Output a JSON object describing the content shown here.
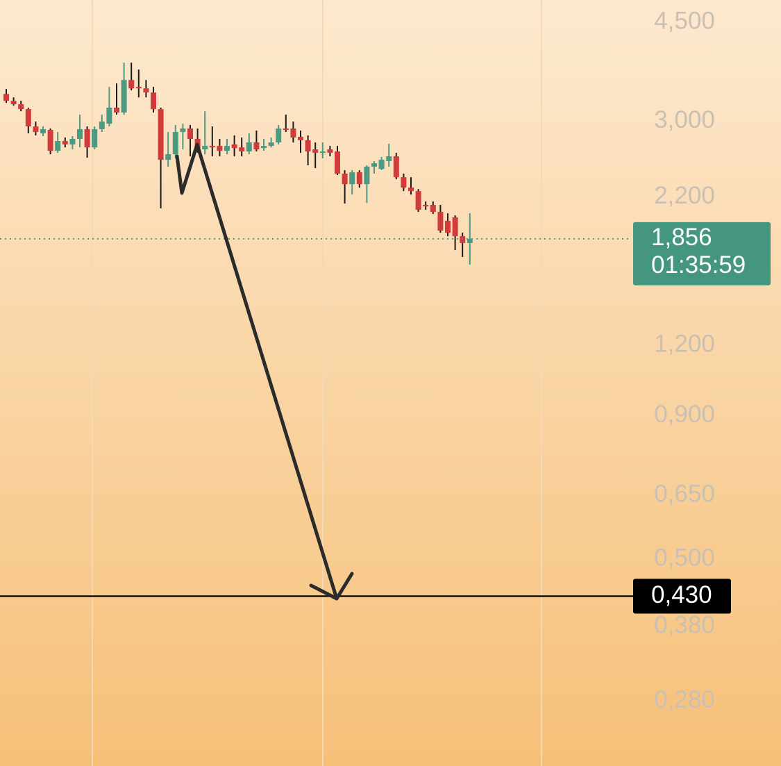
{
  "chart_data": {
    "type": "candlestick",
    "log_scale": true,
    "ylim": [
      0.2147,
      4.93
    ],
    "yticks": [
      {
        "value": 4.5,
        "label": "4,500"
      },
      {
        "value": 3.0,
        "label": "3,000"
      },
      {
        "value": 2.2,
        "label": "2,200"
      },
      {
        "value": 1.2,
        "label": "1,200"
      },
      {
        "value": 0.9,
        "label": "0,900"
      },
      {
        "value": 0.65,
        "label": "0,650"
      },
      {
        "value": 0.5,
        "label": "0,500"
      },
      {
        "value": 0.38,
        "label": "0,380"
      },
      {
        "value": 0.28,
        "label": "0,280"
      }
    ],
    "up_color": "#4c9a82",
    "down_color": "#d23b3b",
    "open": [
      3.357,
      3.264,
      3.219,
      3.155,
      2.939,
      2.857,
      2.898,
      2.66,
      2.769,
      2.73,
      2.793,
      2.906,
      2.698,
      2.906,
      2.972,
      3.174,
      3.111,
      3.554,
      3.455,
      3.435,
      3.377,
      3.155,
      2.564,
      2.623,
      2.873,
      2.914,
      2.793,
      2.676,
      2.714,
      2.714,
      2.66,
      2.73,
      2.698,
      2.653,
      2.753,
      2.69,
      2.714,
      2.753,
      2.914,
      2.914,
      2.817,
      2.777,
      2.676,
      2.653,
      2.676,
      2.653,
      2.423,
      2.321,
      2.436,
      2.321,
      2.493,
      2.471,
      2.55,
      2.601,
      2.388,
      2.288,
      2.256,
      2.132,
      2.132,
      2.072,
      1.997,
      2.026,
      1.876,
      1.824
    ],
    "high": [
      3.425,
      3.31,
      3.264,
      3.174,
      2.998,
      2.939,
      2.914,
      2.873,
      2.809,
      2.825,
      3.084,
      2.939,
      2.939,
      3.084,
      3.455,
      3.504,
      3.815,
      3.815,
      3.709,
      3.554,
      3.455,
      3.174,
      2.873,
      2.956,
      2.972,
      2.956,
      2.914,
      3.127,
      2.939,
      2.793,
      2.793,
      2.833,
      2.809,
      2.857,
      2.89,
      2.793,
      2.809,
      2.956,
      3.084,
      2.998,
      2.89,
      2.833,
      2.753,
      2.753,
      2.714,
      2.714,
      2.457,
      2.457,
      2.457,
      2.507,
      2.55,
      2.594,
      2.738,
      2.638,
      2.423,
      2.388,
      2.275,
      2.162,
      2.162,
      2.132,
      2.06,
      2.043,
      1.903,
      2.06
    ],
    "low": [
      3.237,
      3.2,
      3.127,
      2.857,
      2.833,
      2.825,
      2.623,
      2.638,
      2.698,
      2.676,
      2.698,
      2.586,
      2.676,
      2.873,
      2.939,
      3.084,
      3.084,
      3.407,
      3.31,
      3.31,
      3.111,
      2.102,
      2.493,
      2.579,
      2.676,
      2.601,
      2.638,
      2.623,
      2.601,
      2.601,
      2.623,
      2.601,
      2.601,
      2.623,
      2.653,
      2.66,
      2.698,
      2.73,
      2.873,
      2.753,
      2.638,
      2.507,
      2.478,
      2.579,
      2.601,
      2.409,
      2.144,
      2.224,
      2.288,
      2.149,
      2.423,
      2.457,
      2.493,
      2.368,
      2.256,
      2.224,
      2.072,
      2.09,
      2.054,
      1.903,
      1.876,
      1.772,
      1.723,
      1.67
    ],
    "close": [
      3.264,
      3.219,
      3.155,
      2.939,
      2.873,
      2.906,
      2.66,
      2.769,
      2.73,
      2.793,
      2.906,
      2.698,
      2.906,
      2.998,
      3.174,
      3.111,
      3.554,
      3.435,
      3.435,
      3.377,
      3.155,
      2.564,
      2.623,
      2.873,
      2.914,
      2.793,
      2.676,
      2.714,
      2.698,
      2.66,
      2.714,
      2.69,
      2.653,
      2.753,
      2.676,
      2.714,
      2.753,
      2.914,
      2.898,
      2.809,
      2.777,
      2.653,
      2.638,
      2.653,
      2.638,
      2.423,
      2.321,
      2.436,
      2.321,
      2.493,
      2.528,
      2.564,
      2.601,
      2.388,
      2.288,
      2.256,
      2.09,
      2.119,
      2.072,
      1.919,
      1.903,
      1.876,
      1.824,
      1.856
    ],
    "last_price": {
      "value": 1.856,
      "label": "1,856",
      "countdown": "01:35:59"
    },
    "target_level": {
      "value": 0.43,
      "label": "0,430"
    }
  }
}
